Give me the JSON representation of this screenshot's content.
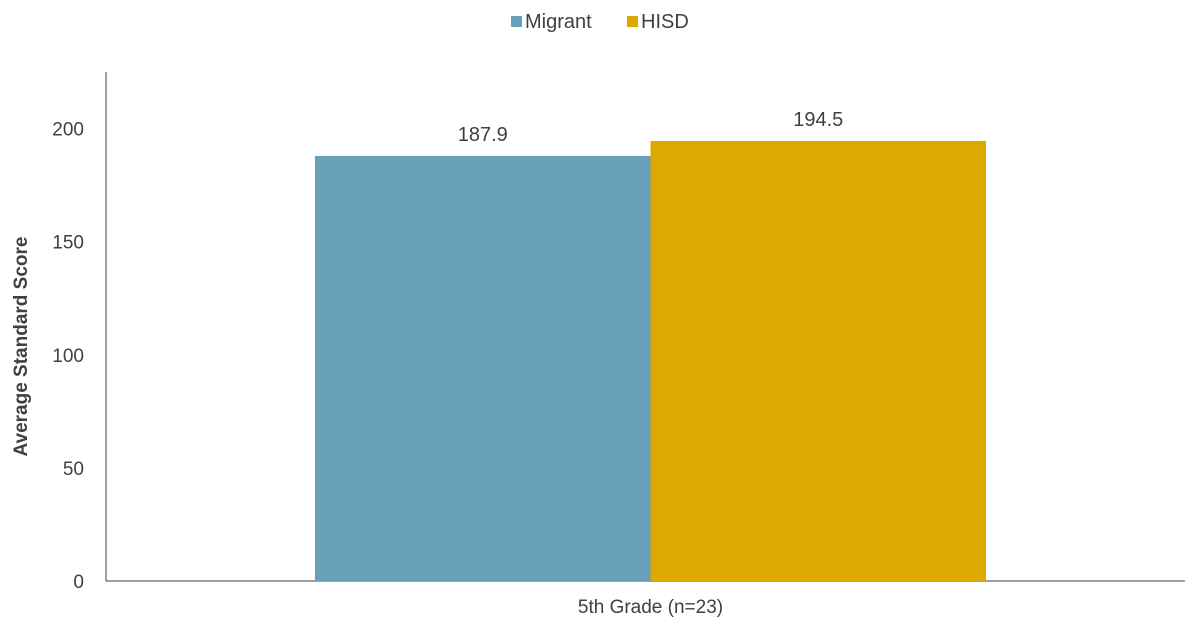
{
  "chart_data": {
    "type": "bar",
    "title": "",
    "xlabel": "",
    "ylabel": "Average Standard Score",
    "categories": [
      "5th Grade (n=23)"
    ],
    "series": [
      {
        "name": "Migrant",
        "values": [
          187.9
        ],
        "labels": [
          "187.9"
        ],
        "color": "#66A1B9"
      },
      {
        "name": "HISD",
        "values": [
          194.5
        ],
        "labels": [
          "194.5"
        ],
        "color": "#DCA900"
      }
    ],
    "ylim": [
      0,
      225
    ],
    "yticks": [
      0,
      50,
      100,
      150,
      200
    ],
    "grid": false,
    "legend_position": "top-center"
  }
}
